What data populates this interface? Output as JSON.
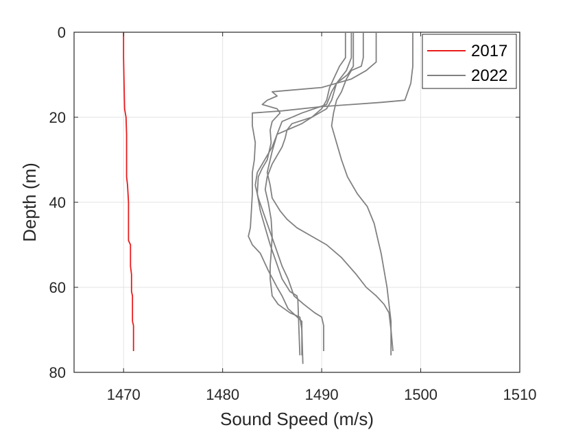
{
  "chart_data": {
    "type": "line",
    "title": "",
    "xlabel": "Sound Speed (m/s)",
    "ylabel": "Depth (m)",
    "xlim": [
      1465,
      1510
    ],
    "ylim": [
      0,
      80
    ],
    "y_reversed": true,
    "grid": true,
    "legend_position": "top-right",
    "xticks": [
      1470,
      1480,
      1490,
      1500,
      1510
    ],
    "xtick_labels": [
      "1470",
      "1480",
      "1490",
      "1500",
      "1510"
    ],
    "yticks": [
      0,
      20,
      40,
      60,
      80
    ],
    "ytick_labels": [
      "0",
      "20",
      "40",
      "60",
      "80"
    ],
    "legend": [
      {
        "name": "2017",
        "color": "#e8191a"
      },
      {
        "name": "2022",
        "color": "#808080"
      }
    ],
    "series": [
      {
        "name": "2017",
        "color": "#e8191a",
        "points": [
          [
            1470.0,
            0
          ],
          [
            1470.0,
            6
          ],
          [
            1470.05,
            12
          ],
          [
            1470.1,
            18
          ],
          [
            1470.25,
            20
          ],
          [
            1470.3,
            24
          ],
          [
            1470.3,
            34
          ],
          [
            1470.4,
            36
          ],
          [
            1470.5,
            40
          ],
          [
            1470.5,
            49
          ],
          [
            1470.7,
            50
          ],
          [
            1470.7,
            55
          ],
          [
            1470.8,
            57
          ],
          [
            1470.8,
            61
          ],
          [
            1470.9,
            62
          ],
          [
            1470.9,
            68
          ],
          [
            1471.0,
            69
          ],
          [
            1471.0,
            72
          ],
          [
            1471.0,
            75
          ]
        ]
      },
      {
        "name": "2022",
        "color": "#808080",
        "points": [
          [
            1499.2,
            0
          ],
          [
            1499.2,
            8
          ],
          [
            1499.0,
            12
          ],
          [
            1498.4,
            16
          ],
          [
            1496.0,
            16.5
          ],
          [
            1490.0,
            17.5
          ],
          [
            1486.0,
            18.5
          ],
          [
            1483.0,
            19
          ],
          [
            1483.0,
            22
          ],
          [
            1483.3,
            26
          ],
          [
            1483.2,
            30
          ],
          [
            1483.0,
            33
          ],
          [
            1483.0,
            38
          ],
          [
            1482.9,
            42
          ],
          [
            1482.8,
            46
          ],
          [
            1482.6,
            48
          ],
          [
            1483.0,
            50
          ],
          [
            1483.8,
            52
          ],
          [
            1484.6,
            56
          ],
          [
            1485.5,
            60
          ],
          [
            1486.0,
            62
          ],
          [
            1486.6,
            65
          ],
          [
            1487.3,
            66.5
          ],
          [
            1488.0,
            68
          ],
          [
            1488.0,
            76
          ]
        ]
      },
      {
        "name": "",
        "color": "#808080",
        "points": [
          [
            1495.5,
            0
          ],
          [
            1495.5,
            7
          ],
          [
            1494.5,
            9
          ],
          [
            1493.0,
            11
          ],
          [
            1490.0,
            13
          ],
          [
            1485.0,
            14
          ],
          [
            1485.5,
            15
          ],
          [
            1484.5,
            16
          ],
          [
            1484.0,
            17
          ],
          [
            1485.5,
            18
          ],
          [
            1485.8,
            19
          ],
          [
            1485.0,
            21
          ],
          [
            1484.8,
            23
          ],
          [
            1484.9,
            26
          ],
          [
            1484.5,
            30
          ],
          [
            1484.0,
            32
          ],
          [
            1483.6,
            34
          ],
          [
            1483.5,
            38
          ],
          [
            1483.8,
            42
          ],
          [
            1484.3,
            46
          ],
          [
            1484.8,
            50
          ],
          [
            1485.4,
            54
          ],
          [
            1486.0,
            58
          ],
          [
            1486.8,
            61
          ],
          [
            1487.5,
            62
          ],
          [
            1487.6,
            63
          ],
          [
            1487.8,
            76
          ]
        ]
      },
      {
        "name": "",
        "color": "#808080",
        "points": [
          [
            1493.2,
            0
          ],
          [
            1493.2,
            8
          ],
          [
            1492.6,
            10
          ],
          [
            1491.5,
            12
          ],
          [
            1491.0,
            14
          ],
          [
            1490.5,
            17
          ],
          [
            1488.0,
            19
          ],
          [
            1486.0,
            21
          ],
          [
            1485.5,
            24
          ],
          [
            1485.0,
            28
          ],
          [
            1484.5,
            33
          ],
          [
            1484.8,
            36
          ],
          [
            1485.0,
            39
          ],
          [
            1485.8,
            42
          ],
          [
            1486.5,
            44
          ],
          [
            1487.5,
            46
          ],
          [
            1489.0,
            48
          ],
          [
            1490.5,
            50
          ],
          [
            1492.0,
            53
          ],
          [
            1493.5,
            57
          ],
          [
            1494.5,
            60
          ],
          [
            1495.5,
            62
          ],
          [
            1496.3,
            64
          ],
          [
            1496.8,
            66
          ],
          [
            1497.0,
            70
          ],
          [
            1497.2,
            75
          ]
        ]
      },
      {
        "name": "",
        "color": "#808080",
        "points": [
          [
            1492.4,
            0
          ],
          [
            1492.4,
            6
          ],
          [
            1491.8,
            8
          ],
          [
            1491.2,
            11
          ],
          [
            1490.8,
            13
          ],
          [
            1490.5,
            16
          ],
          [
            1490.0,
            18
          ],
          [
            1489.0,
            20
          ],
          [
            1488.0,
            21.5
          ],
          [
            1487.0,
            22.5
          ],
          [
            1485.5,
            24
          ],
          [
            1485.0,
            27
          ],
          [
            1484.0,
            31
          ],
          [
            1483.5,
            33
          ],
          [
            1483.3,
            36
          ],
          [
            1483.6,
            39
          ],
          [
            1484.2,
            43
          ],
          [
            1484.8,
            47
          ],
          [
            1485.4,
            51
          ],
          [
            1486.0,
            55
          ],
          [
            1486.6,
            58
          ],
          [
            1487.2,
            62
          ],
          [
            1488.2,
            64
          ],
          [
            1489.3,
            66
          ],
          [
            1490.0,
            67
          ],
          [
            1490.2,
            69
          ],
          [
            1490.2,
            75
          ]
        ]
      },
      {
        "name": "",
        "color": "#808080",
        "points": [
          [
            1494.2,
            0
          ],
          [
            1494.2,
            6
          ],
          [
            1494.0,
            8
          ],
          [
            1493.0,
            9
          ],
          [
            1492.5,
            11
          ],
          [
            1492.0,
            14
          ],
          [
            1491.5,
            16
          ],
          [
            1491.2,
            19
          ],
          [
            1491.0,
            22
          ],
          [
            1491.5,
            26
          ],
          [
            1492.0,
            30
          ],
          [
            1492.6,
            34
          ],
          [
            1493.6,
            38
          ],
          [
            1494.6,
            41
          ],
          [
            1495.3,
            45
          ],
          [
            1495.7,
            49
          ],
          [
            1496.0,
            52
          ],
          [
            1496.3,
            56
          ],
          [
            1496.6,
            60
          ],
          [
            1496.8,
            64
          ],
          [
            1497.0,
            68
          ],
          [
            1497.0,
            71
          ],
          [
            1497.0,
            76
          ]
        ]
      },
      {
        "name": "",
        "color": "#808080",
        "points": [
          [
            1493.0,
            0
          ],
          [
            1493.0,
            6
          ],
          [
            1492.5,
            9
          ],
          [
            1491.5,
            12
          ],
          [
            1491.0,
            16
          ],
          [
            1490.5,
            18
          ],
          [
            1489.0,
            20
          ],
          [
            1487.0,
            21.5
          ],
          [
            1486.5,
            23
          ],
          [
            1486.3,
            25
          ],
          [
            1486.0,
            27
          ],
          [
            1485.5,
            29
          ],
          [
            1485.0,
            31
          ],
          [
            1484.5,
            34
          ],
          [
            1484.3,
            37
          ],
          [
            1484.6,
            40
          ],
          [
            1484.9,
            44
          ],
          [
            1485.0,
            48
          ],
          [
            1484.9,
            52
          ],
          [
            1484.8,
            55
          ],
          [
            1484.8,
            58
          ],
          [
            1485.0,
            62
          ],
          [
            1485.6,
            64
          ],
          [
            1486.8,
            66
          ],
          [
            1487.8,
            67
          ],
          [
            1488.0,
            70
          ],
          [
            1488.1,
            78
          ]
        ]
      }
    ]
  }
}
